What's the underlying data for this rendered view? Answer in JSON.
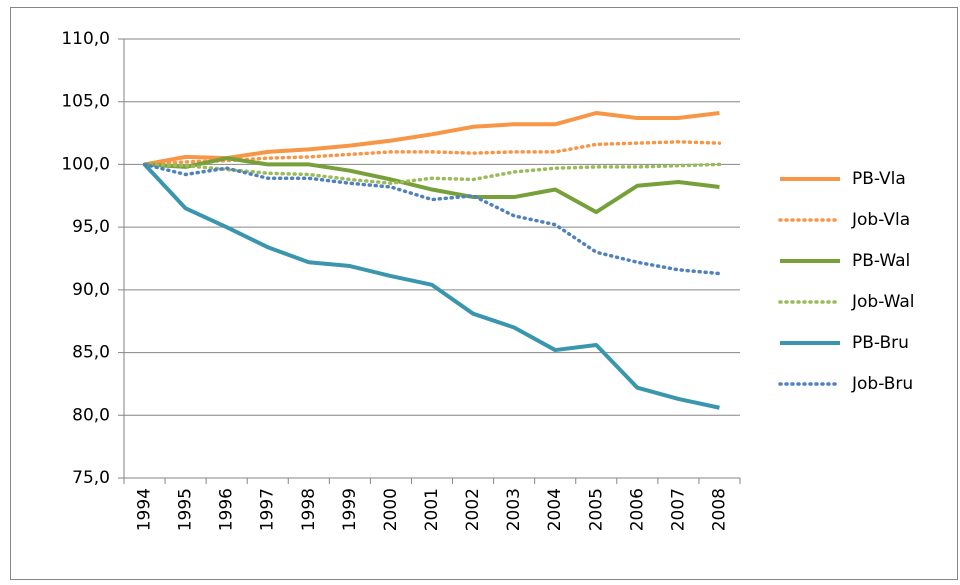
{
  "chart_data": {
    "type": "line",
    "categories": [
      "1994",
      "1995",
      "1996",
      "1997",
      "1998",
      "1999",
      "2000",
      "2001",
      "2002",
      "2003",
      "2004",
      "2005",
      "2006",
      "2007",
      "2008"
    ],
    "series": [
      {
        "name": "PB-Vla",
        "color": "#f79646",
        "dash": false,
        "values": [
          100,
          100.6,
          100.5,
          101.0,
          101.2,
          101.5,
          101.9,
          102.4,
          103.0,
          103.2,
          103.2,
          104.1,
          103.7,
          103.7,
          104.1
        ]
      },
      {
        "name": "Job-Vla",
        "color": "#f79646",
        "dash": true,
        "values": [
          100,
          100.2,
          100.3,
          100.5,
          100.6,
          100.8,
          101.0,
          101.0,
          100.9,
          101.0,
          101.0,
          101.6,
          101.7,
          101.8,
          101.7
        ]
      },
      {
        "name": "PB-Wal",
        "color": "#77a03a",
        "dash": false,
        "values": [
          100,
          99.8,
          100.5,
          100.0,
          100.0,
          99.5,
          98.8,
          98.0,
          97.4,
          97.4,
          98.0,
          96.2,
          98.3,
          98.6,
          98.2
        ]
      },
      {
        "name": "Job-Wal",
        "color": "#9bbb59",
        "dash": true,
        "values": [
          100,
          99.9,
          99.6,
          99.3,
          99.2,
          98.8,
          98.5,
          98.9,
          98.8,
          99.4,
          99.7,
          99.8,
          99.8,
          99.9,
          100.0
        ]
      },
      {
        "name": "PB-Bru",
        "color": "#3a96ad",
        "dash": false,
        "values": [
          100,
          96.5,
          95.0,
          93.4,
          92.2,
          91.9,
          91.1,
          90.4,
          88.1,
          87.0,
          85.2,
          85.6,
          82.2,
          81.3,
          80.6
        ]
      },
      {
        "name": "Job-Bru",
        "color": "#4f81bd",
        "dash": true,
        "values": [
          100,
          99.2,
          99.7,
          98.9,
          98.9,
          98.5,
          98.2,
          97.2,
          97.5,
          95.9,
          95.2,
          93.0,
          92.2,
          91.6,
          91.3
        ]
      }
    ],
    "ylim": [
      75,
      110
    ],
    "yticks": [
      {
        "value": 75,
        "label": "75,0"
      },
      {
        "value": 80,
        "label": "80,0"
      },
      {
        "value": 85,
        "label": "85,0"
      },
      {
        "value": 90,
        "label": "90,0"
      },
      {
        "value": 95,
        "label": "95,0"
      },
      {
        "value": 100,
        "label": "100,0"
      },
      {
        "value": 105,
        "label": "105,0"
      },
      {
        "value": 110,
        "label": "110,0"
      }
    ],
    "grid": true,
    "legend": "right"
  }
}
